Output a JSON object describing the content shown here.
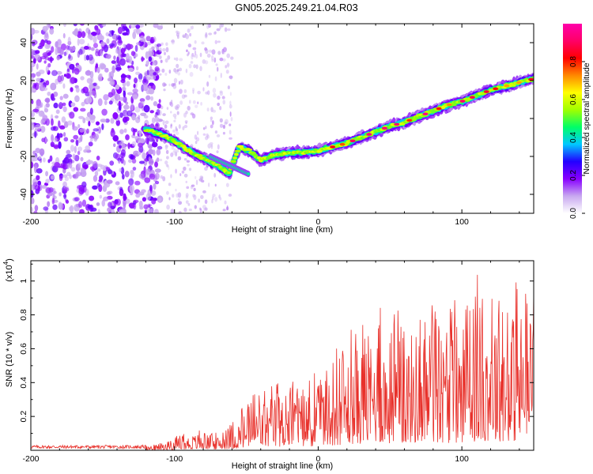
{
  "title": "GN05.2025.249.21.04.R03",
  "chart_data": [
    {
      "type": "heatmap",
      "name": "spectrogram",
      "xlabel": "Height of straight line (km)",
      "ylabel": "Frequency (Hz)",
      "xlim": [
        -200,
        150
      ],
      "ylim": [
        -50,
        50
      ],
      "xticks": [
        -200,
        -100,
        0,
        100
      ],
      "yticks": [
        -40,
        -20,
        0,
        20,
        40
      ],
      "track": {
        "description": "frequency ridge of strongest amplitude vs height",
        "points": [
          [
            -120,
            -6
          ],
          [
            -110,
            -8
          ],
          [
            -100,
            -12
          ],
          [
            -90,
            -17
          ],
          [
            -80,
            -21
          ],
          [
            -70,
            -25
          ],
          [
            -62,
            -29
          ],
          [
            -55,
            -15
          ],
          [
            -48,
            -17
          ],
          [
            -40,
            -22
          ],
          [
            -30,
            -19
          ],
          [
            -20,
            -18
          ],
          [
            -10,
            -18
          ],
          [
            0,
            -17
          ],
          [
            10,
            -15
          ],
          [
            20,
            -13
          ],
          [
            30,
            -10
          ],
          [
            40,
            -7
          ],
          [
            50,
            -4
          ],
          [
            60,
            -2
          ],
          [
            70,
            1
          ],
          [
            80,
            4
          ],
          [
            90,
            7
          ],
          [
            100,
            9
          ],
          [
            110,
            12
          ],
          [
            120,
            15
          ],
          [
            130,
            17
          ],
          [
            140,
            19
          ],
          [
            150,
            21
          ]
        ]
      },
      "colorbar": {
        "label": "Normalized spectral amplitude",
        "range": [
          0,
          1
        ],
        "ticks": [
          "0.0",
          "0.2",
          "0.4",
          "0.6",
          "0.8"
        ],
        "colors": [
          "#ffffff",
          "#c8a8f0",
          "#8800ff",
          "#2200ff",
          "#00c8ff",
          "#00ff66",
          "#a0ff00",
          "#ffff00",
          "#ff8800",
          "#ff0000",
          "#ff0066",
          "#ff00aa"
        ]
      }
    },
    {
      "type": "line",
      "name": "snr",
      "xlabel": "Height of straight line (km)",
      "ylabel": "SNR (10 * v/v)",
      "scale_label": "(x10",
      "scale_exp": "4",
      "scale_close": ")",
      "xlim": [
        -200,
        150
      ],
      "ylim": [
        0,
        1.12
      ],
      "xticks": [
        -200,
        -100,
        0,
        100
      ],
      "yticks": [
        "0.2",
        "0.4",
        "0.6",
        "0.8",
        "1"
      ],
      "color": "#e8302a",
      "envelope": {
        "x": [
          -200,
          -120,
          -110,
          -100,
          -90,
          -80,
          -70,
          -60,
          -50,
          -40,
          -30,
          -20,
          -10,
          0,
          10,
          20,
          30,
          40,
          50,
          60,
          70,
          80,
          90,
          100,
          110,
          120,
          130,
          140,
          150
        ],
        "max": [
          0.03,
          0.03,
          0.05,
          0.08,
          0.11,
          0.13,
          0.1,
          0.16,
          0.3,
          0.37,
          0.4,
          0.42,
          0.44,
          0.48,
          0.58,
          0.7,
          0.78,
          0.92,
          0.82,
          0.86,
          0.9,
          0.95,
          0.86,
          0.92,
          1.05,
          1.12,
          1.02,
          1.08,
          0.95
        ]
      }
    }
  ]
}
